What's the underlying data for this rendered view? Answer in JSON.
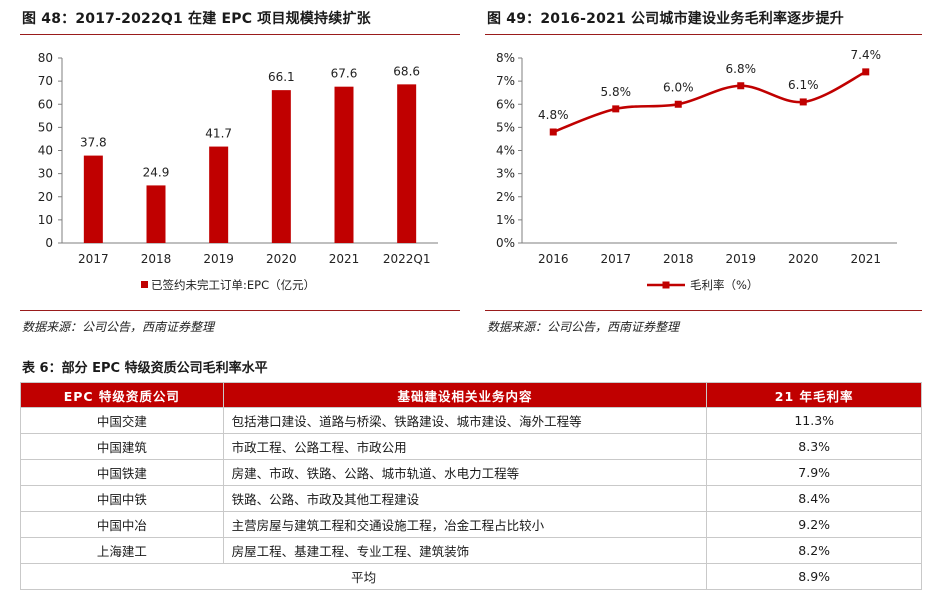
{
  "fig48": {
    "title": "图 48：2017-2022Q1 在建 EPC 项目规模持续扩张",
    "source": "数据来源：公司公告，西南证券整理"
  },
  "fig49": {
    "title": "图 49：2016-2021 公司城市建设业务毛利率逐步提升",
    "source": "数据来源：公司公告，西南证券整理"
  },
  "chart_data": [
    {
      "type": "bar",
      "categories": [
        "2017",
        "2018",
        "2019",
        "2020",
        "2021",
        "2022Q1"
      ],
      "values": [
        37.8,
        24.9,
        41.7,
        66.1,
        67.6,
        68.6
      ],
      "value_labels": [
        "37.8",
        "24.9",
        "41.7",
        "66.1",
        "67.6",
        "68.6"
      ],
      "series_name": "已签约未完工订单:EPC（亿元）",
      "ylim": [
        0,
        80
      ],
      "yticks": [
        "0",
        "10",
        "20",
        "30",
        "40",
        "50",
        "60",
        "70",
        "80"
      ],
      "color": "#c00000",
      "legend": "bottom",
      "grid": false
    },
    {
      "type": "line",
      "x": [
        "2016",
        "2017",
        "2018",
        "2019",
        "2020",
        "2021"
      ],
      "values": [
        4.8,
        5.8,
        6.0,
        6.8,
        6.1,
        7.4
      ],
      "value_labels": [
        "4.8%",
        "5.8%",
        "6.0%",
        "6.8%",
        "6.1%",
        "7.4%"
      ],
      "series_name": "毛利率（%）",
      "ylim": [
        0,
        8
      ],
      "yticks": [
        "0%",
        "1%",
        "2%",
        "3%",
        "4%",
        "5%",
        "6%",
        "7%",
        "8%"
      ],
      "color": "#c00000",
      "legend": "bottom",
      "grid": false
    }
  ],
  "table": {
    "title": "表 6：部分 EPC 特级资质公司毛利率水平",
    "headers": [
      "EPC 特级资质公司",
      "基础建设相关业务内容",
      "21 年毛利率"
    ],
    "rows": [
      {
        "company": "中国交建",
        "business": "包括港口建设、道路与桥梁、铁路建设、城市建设、海外工程等",
        "margin": "11.3%"
      },
      {
        "company": "中国建筑",
        "business": "市政工程、公路工程、市政公用",
        "margin": "8.3%"
      },
      {
        "company": "中国铁建",
        "business": "房建、市政、铁路、公路、城市轨道、水电力工程等",
        "margin": "7.9%"
      },
      {
        "company": "中国中铁",
        "business": "铁路、公路、市政及其他工程建设",
        "margin": "8.4%"
      },
      {
        "company": "中国中冶",
        "business": "主营房屋与建筑工程和交通设施工程，冶金工程占比较小",
        "margin": "9.2%"
      },
      {
        "company": "上海建工",
        "business": "房屋工程、基建工程、专业工程、建筑装饰",
        "margin": "8.2%"
      }
    ],
    "avg_label": "平均",
    "avg_value": "8.9%"
  }
}
